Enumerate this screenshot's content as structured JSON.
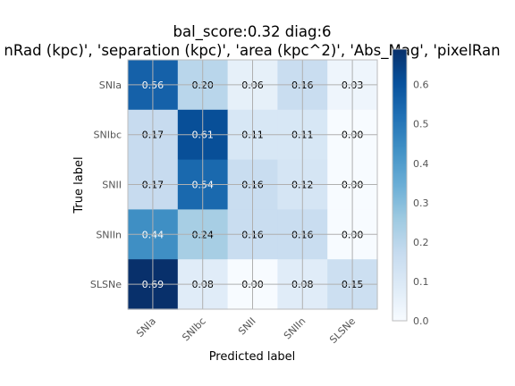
{
  "chart_data": {
    "type": "heatmap",
    "title_line1": "bal_score:0.32 diag:6",
    "title_line2": "nRad (kpc)', 'separation (kpc)', 'area (kpc^2)', 'Abs_Mag', 'pixelRan",
    "xlabel": "Predicted label",
    "ylabel": "True label",
    "x_categories": [
      "SNIa",
      "SNIbc",
      "SNII",
      "SNIIn",
      "SLSNe"
    ],
    "y_categories": [
      "SNIa",
      "SNIbc",
      "SNII",
      "SNIIn",
      "SLSNe"
    ],
    "values": [
      [
        0.56,
        0.2,
        0.06,
        0.16,
        0.03
      ],
      [
        0.17,
        0.61,
        0.11,
        0.11,
        0.0
      ],
      [
        0.17,
        0.54,
        0.16,
        0.12,
        0.0
      ],
      [
        0.44,
        0.24,
        0.16,
        0.16,
        0.0
      ],
      [
        0.69,
        0.08,
        0.0,
        0.08,
        0.15
      ]
    ],
    "colormap": "Blues",
    "color_min": 0.0,
    "color_max": 0.69,
    "colorbar_ticks": [
      "0.0",
      "0.1",
      "0.2",
      "0.3",
      "0.4",
      "0.5",
      "0.6"
    ],
    "grid": true,
    "text_color_light": "#ffffff",
    "text_color_dark": "#000000"
  }
}
